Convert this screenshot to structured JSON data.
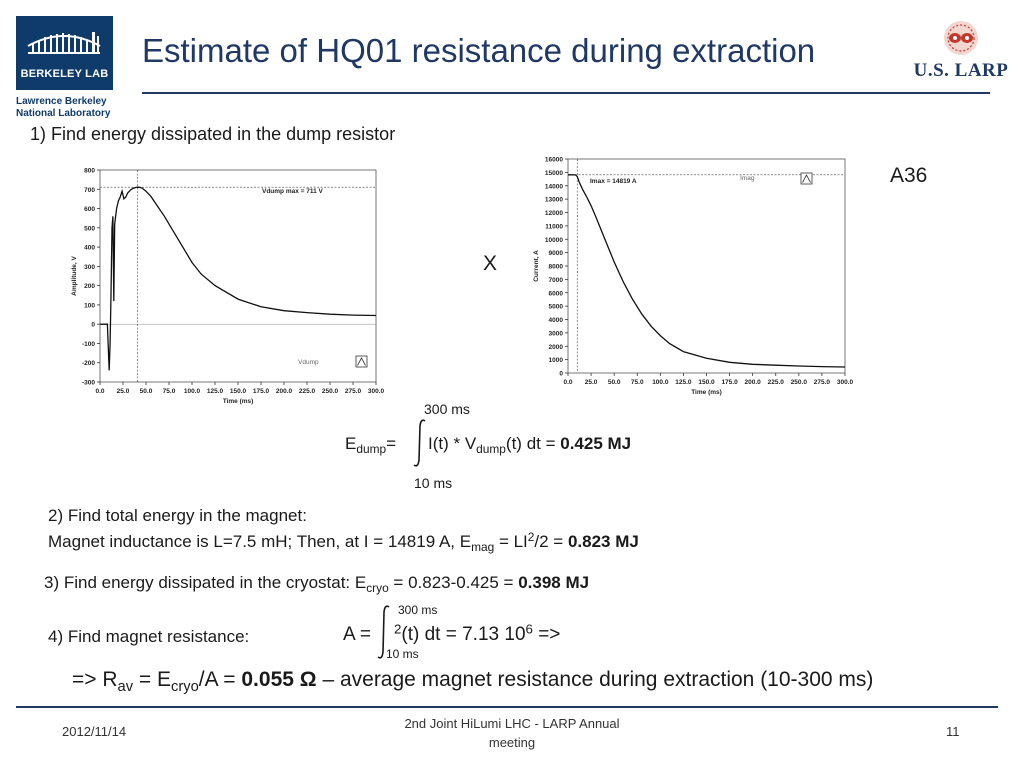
{
  "header": {
    "title": "Estimate of HQ01 resistance during extraction",
    "lbl_logo_text": "BERKELEY LAB",
    "lab_name_line1": "Lawrence Berkeley",
    "lab_name_line2": "National Laboratory",
    "larp_logo_text": "U.S. LARP"
  },
  "colors": {
    "title": "#1f3864",
    "lbl_blue": "#0f3b6b",
    "larp_red": "#c0392b"
  },
  "steps": {
    "step1": "1) Find energy dissipated in the dump resistor",
    "times_sign": "X",
    "plot_id": "A36",
    "edump_label": "E",
    "edump_sub": "dump",
    "edump_eq": "=",
    "edump_mid": "I(t) * V",
    "edump_mid_sub": "dump",
    "edump_tail": "(t) dt = ",
    "edump_value": "0.425 MJ",
    "int1_upper": "300 ms",
    "int1_lower": "10 ms",
    "step2_line1": "2) Find total energy in the magnet:",
    "step2_line2_a": "Magnet inductance is L=7.5 mH;  Then, at I = 14819 A, E",
    "step2_line2_sub": "mag",
    "step2_line2_b": " = LI",
    "step2_line2_sup": "2",
    "step2_line2_c": "/2 = ",
    "step2_value": "0.823 MJ",
    "step3_a": "3) Find energy dissipated in the cryostat: E",
    "step3_sub": "cryo",
    "step3_b": " = 0.823-0.425 = ",
    "step3_value": "0.398 MJ",
    "step4_label": "4) Find magnet resistance:",
    "step4_a": "A = ",
    "step4_sup1": "2",
    "step4_b": "(t) dt = 7.13 10",
    "step4_sup2": "6",
    "step4_c": "   =>",
    "int2_upper": "300 ms",
    "int2_lower": "10 ms",
    "result_a": "=> R",
    "result_sub1": "av",
    "result_b": " = E",
    "result_sub2": "cryo",
    "result_c": "/A  = ",
    "result_value": "0.055 Ω",
    "result_d": "  –  average magnet resistance during extraction (10-300 ms)"
  },
  "footer": {
    "date": "2012/11/14",
    "event_line1": "2nd Joint HiLumi LHC - LARP Annual",
    "event_line2": "meeting",
    "page": "11"
  },
  "chart_data": [
    {
      "type": "line",
      "title": "",
      "xlabel": "Time (ms)",
      "ylabel": "Amplitude, V",
      "xlim": [
        0,
        300
      ],
      "ylim": [
        -300,
        800
      ],
      "xticks": [
        "0.0",
        "25.0",
        "50.0",
        "75.0",
        "100.0",
        "125.0",
        "150.0",
        "175.0",
        "200.0",
        "225.0",
        "250.0",
        "275.0",
        "300.0"
      ],
      "yticks": [
        "800",
        "700",
        "600",
        "500",
        "400",
        "300",
        "200",
        "100",
        "0",
        "-100",
        "-200",
        "-300"
      ],
      "annotation": "Vdump max = 711 V",
      "legend": "Vdump",
      "marker_x": 41,
      "marker_y": 711,
      "series": [
        {
          "name": "Vdump",
          "x": [
            0,
            8,
            9.5,
            10,
            11,
            12,
            13,
            14,
            15,
            16,
            18,
            20,
            22,
            24,
            26,
            28,
            30,
            32,
            34,
            36,
            38,
            40,
            41,
            43,
            46,
            50,
            55,
            60,
            70,
            80,
            90,
            100,
            110,
            125,
            150,
            175,
            200,
            225,
            250,
            275,
            300
          ],
          "y": [
            0,
            0,
            -180,
            -240,
            -100,
            150,
            500,
            560,
            120,
            520,
            600,
            640,
            660,
            690,
            650,
            660,
            680,
            690,
            700,
            705,
            708,
            710,
            711,
            710,
            705,
            690,
            665,
            630,
            560,
            480,
            400,
            320,
            260,
            200,
            130,
            90,
            70,
            60,
            52,
            47,
            45
          ]
        }
      ]
    },
    {
      "type": "line",
      "title": "",
      "xlabel": "Time (ms)",
      "ylabel": "Current, A",
      "xlim": [
        0,
        300
      ],
      "ylim": [
        0,
        16000
      ],
      "xticks": [
        "0.0",
        "25.0",
        "50.0",
        "75.0",
        "100.0",
        "125.0",
        "150.0",
        "175.0",
        "200.0",
        "225.0",
        "250.0",
        "275.0",
        "300.0"
      ],
      "yticks": [
        "16000",
        "15000",
        "14000",
        "13000",
        "12000",
        "11000",
        "10000",
        "9000",
        "8000",
        "7000",
        "6000",
        "5000",
        "4000",
        "3000",
        "2000",
        "1000",
        "0"
      ],
      "annotation": "Imax =  14819 A",
      "legend": "Imag",
      "marker_x": 10,
      "marker_y": 14819,
      "series": [
        {
          "name": "Imag",
          "x": [
            0,
            5,
            8,
            10,
            12,
            14,
            16,
            20,
            25,
            30,
            40,
            50,
            60,
            70,
            80,
            90,
            100,
            110,
            125,
            150,
            175,
            200,
            225,
            250,
            275,
            300
          ],
          "y": [
            14819,
            14819,
            14810,
            14700,
            14300,
            14000,
            13700,
            13200,
            12500,
            11700,
            10000,
            8300,
            6800,
            5500,
            4400,
            3500,
            2800,
            2200,
            1600,
            1100,
            800,
            650,
            580,
            520,
            480,
            450
          ]
        }
      ]
    }
  ]
}
